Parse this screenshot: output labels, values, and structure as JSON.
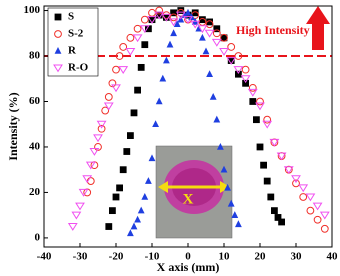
{
  "chart_data": {
    "type": "scatter",
    "x_label": "X axis (mm)",
    "y_label": "Intensity (%)",
    "annotations": {
      "high": "High Intensity",
      "inset": "X"
    },
    "reference_line": 80,
    "reference_color": "#e8141b",
    "xlim": [
      -40,
      40
    ],
    "ylim": [
      -4,
      102
    ],
    "xticks": [
      -40,
      -30,
      -20,
      -10,
      0,
      10,
      20,
      30,
      40
    ],
    "yticks": [
      0,
      20,
      40,
      60,
      80,
      100
    ],
    "series": [
      {
        "name": "S",
        "color": "#000000",
        "marker": "square",
        "x": [
          -22,
          -21,
          -20,
          -19,
          -18,
          -17,
          -16,
          -15,
          -14,
          -13,
          -12,
          -11,
          -10,
          -8,
          -6,
          -4,
          -2,
          0,
          2,
          4,
          6,
          8,
          10,
          12,
          14,
          16,
          18,
          19,
          20,
          21,
          22,
          23,
          24,
          25,
          26
        ],
        "values": [
          5,
          12,
          18,
          22,
          30,
          38,
          45,
          55,
          65,
          75,
          85,
          92,
          96,
          98,
          97,
          99,
          100,
          98,
          99,
          96,
          95,
          92,
          88,
          78,
          72,
          68,
          60,
          52,
          40,
          32,
          25,
          18,
          12,
          9,
          7
        ]
      },
      {
        "name": "S-2",
        "color": "#f0302a",
        "marker": "circle",
        "x": [
          -28,
          -27,
          -26,
          -25,
          -24,
          -23,
          -22,
          -21,
          -20,
          -19,
          -18,
          -16,
          -14,
          -12,
          -10,
          -8,
          -6,
          -4,
          -2,
          0,
          2,
          4,
          6,
          8,
          10,
          12,
          14,
          16,
          18,
          20,
          22,
          24,
          26,
          28,
          30,
          32,
          34,
          36,
          38
        ],
        "values": [
          20,
          25,
          32,
          40,
          48,
          56,
          62,
          68,
          74,
          80,
          84,
          88,
          92,
          96,
          99,
          100,
          98,
          97,
          99,
          96,
          98,
          95,
          94,
          90,
          88,
          84,
          80,
          74,
          66,
          60,
          52,
          42,
          36,
          30,
          24,
          18,
          12,
          8,
          4
        ]
      },
      {
        "name": "R",
        "color": "#1f3fe0",
        "marker": "triangle",
        "x": [
          -16,
          -15,
          -14,
          -13,
          -12,
          -11,
          -10,
          -9,
          -8,
          -7,
          -6,
          -5,
          -4,
          -3,
          -2,
          -1,
          0,
          1,
          2,
          3,
          4,
          5,
          6,
          7,
          8,
          9,
          10,
          11,
          12,
          13,
          14
        ],
        "values": [
          2,
          5,
          8,
          12,
          18,
          25,
          35,
          50,
          60,
          70,
          78,
          85,
          90,
          94,
          96,
          98,
          99,
          97,
          95,
          92,
          88,
          82,
          72,
          62,
          52,
          40,
          30,
          22,
          15,
          10,
          6
        ]
      },
      {
        "name": "R-O",
        "color": "#f050f0",
        "marker": "triangle-down",
        "x": [
          -32,
          -31,
          -30,
          -29,
          -28,
          -27,
          -26,
          -25,
          -24,
          -22,
          -20,
          -18,
          -16,
          -14,
          -12,
          -10,
          -8,
          -6,
          -4,
          -2,
          0,
          2,
          4,
          6,
          8,
          10,
          12,
          14,
          16,
          18,
          20,
          22,
          24,
          26,
          28,
          30,
          32,
          34,
          36,
          38
        ],
        "values": [
          5,
          10,
          14,
          20,
          26,
          32,
          38,
          44,
          50,
          58,
          66,
          74,
          82,
          88,
          92,
          96,
          98,
          97,
          95,
          98,
          96,
          94,
          92,
          90,
          86,
          82,
          78,
          74,
          70,
          64,
          58,
          50,
          42,
          36,
          30,
          26,
          22,
          18,
          14,
          10
        ]
      }
    ]
  }
}
